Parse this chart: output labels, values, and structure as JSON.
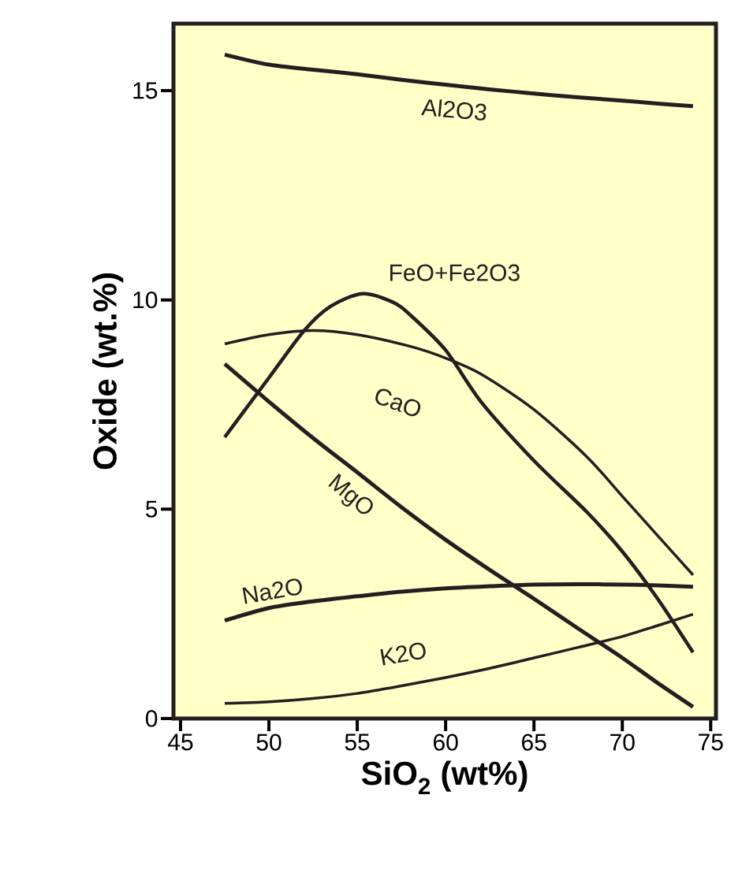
{
  "chart_data": {
    "type": "line",
    "xlabel": "SiO$_{2}$ (wt%)",
    "ylabel": "Oxide (wt.%)",
    "x": [
      47.5,
      50,
      52.5,
      55,
      57.5,
      60,
      62.5,
      65,
      67.5,
      70,
      72,
      74
    ],
    "xlim": [
      44.6,
      75.3
    ],
    "ylim": [
      0,
      16.6
    ],
    "xticks": [
      45,
      50,
      55,
      60,
      65,
      70,
      75
    ],
    "yticks": [
      0,
      5,
      10,
      15
    ],
    "grid": false,
    "legend": false,
    "marker": "none",
    "line_style": "solid",
    "series": [
      {
        "name": "Al2O3",
        "color": "#231f20",
        "values": [
          15.86,
          15.62,
          15.5,
          15.39,
          15.26,
          15.14,
          15.03,
          14.93,
          14.84,
          14.76,
          14.69,
          14.63
        ]
      },
      {
        "name": "FeO+Fe2O3",
        "color": "#231f20",
        "x": [
          47.5,
          50,
          52,
          53.5,
          55.3,
          57,
          58,
          60,
          62,
          65,
          68,
          70,
          72,
          74
        ],
        "values": [
          6.72,
          8.14,
          9.27,
          9.85,
          10.15,
          9.95,
          9.64,
          8.8,
          7.57,
          6.16,
          4.93,
          3.99,
          2.86,
          1.58
        ]
      },
      {
        "name": "CaO",
        "color": "#231f20",
        "x": [
          47.5,
          50,
          52.5,
          55,
          58,
          60,
          62,
          65,
          68,
          70,
          72,
          74
        ],
        "values": [
          8.95,
          9.17,
          9.27,
          9.17,
          8.89,
          8.61,
          8.23,
          7.38,
          6.25,
          5.31,
          4.37,
          3.43
        ]
      },
      {
        "name": "MgO",
        "color": "#231f20",
        "values": [
          8.47,
          7.57,
          6.7,
          5.88,
          5.05,
          4.27,
          3.55,
          2.86,
          2.15,
          1.45,
          0.85,
          0.28
        ]
      },
      {
        "name": "Na2O",
        "color": "#231f20",
        "values": [
          2.34,
          2.64,
          2.8,
          2.92,
          3.03,
          3.11,
          3.16,
          3.2,
          3.21,
          3.2,
          3.18,
          3.15
        ]
      },
      {
        "name": "K2O",
        "color": "#231f20",
        "values": [
          0.36,
          0.4,
          0.48,
          0.6,
          0.78,
          0.98,
          1.2,
          1.45,
          1.7,
          1.96,
          2.22,
          2.49
        ]
      }
    ]
  }
}
